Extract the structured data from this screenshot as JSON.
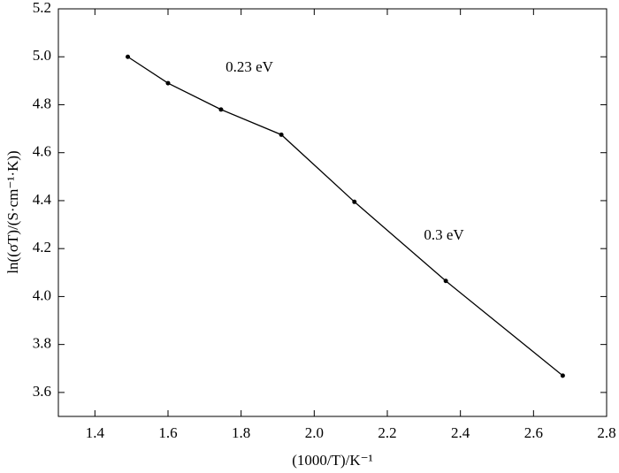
{
  "chart_data": {
    "type": "line",
    "x_label": "(1000/T)/K⁻¹",
    "y_label": "ln((σT)/(S·cm⁻¹·K))",
    "x": [
      1.49,
      1.6,
      1.745,
      1.91,
      2.11,
      2.36,
      2.68
    ],
    "series": [
      {
        "color": "#000000",
        "values": [
          5.0,
          4.89,
          4.78,
          4.675,
          4.395,
          4.065,
          3.67
        ]
      }
    ],
    "xlim": [
      1.3,
      2.8
    ],
    "xticks": [
      {
        "value": 1.4,
        "label": "1.4"
      },
      {
        "value": 1.6,
        "label": "1.6"
      },
      {
        "value": 1.8,
        "label": "1.8"
      },
      {
        "value": 2.0,
        "label": "2.0"
      },
      {
        "value": 2.2,
        "label": "2.2"
      },
      {
        "value": 2.4,
        "label": "2.4"
      },
      {
        "value": 2.6,
        "label": "2.6"
      },
      {
        "value": 2.8,
        "label": "2.8"
      }
    ],
    "ylim": [
      3.5,
      5.2
    ],
    "yticks": [
      {
        "value": 3.6,
        "label": "3.6"
      },
      {
        "value": 3.8,
        "label": "3.8"
      },
      {
        "value": 4.0,
        "label": "4.0"
      },
      {
        "value": 4.2,
        "label": "4.2"
      },
      {
        "value": 4.4,
        "label": "4.4"
      },
      {
        "value": 4.6,
        "label": "4.6"
      },
      {
        "value": 4.8,
        "label": "4.8"
      },
      {
        "value": 5.0,
        "label": "5.0"
      },
      {
        "value": 5.2,
        "label": "5.2"
      }
    ],
    "annotations": [
      "0.23 eV",
      "0.3 eV"
    ]
  }
}
